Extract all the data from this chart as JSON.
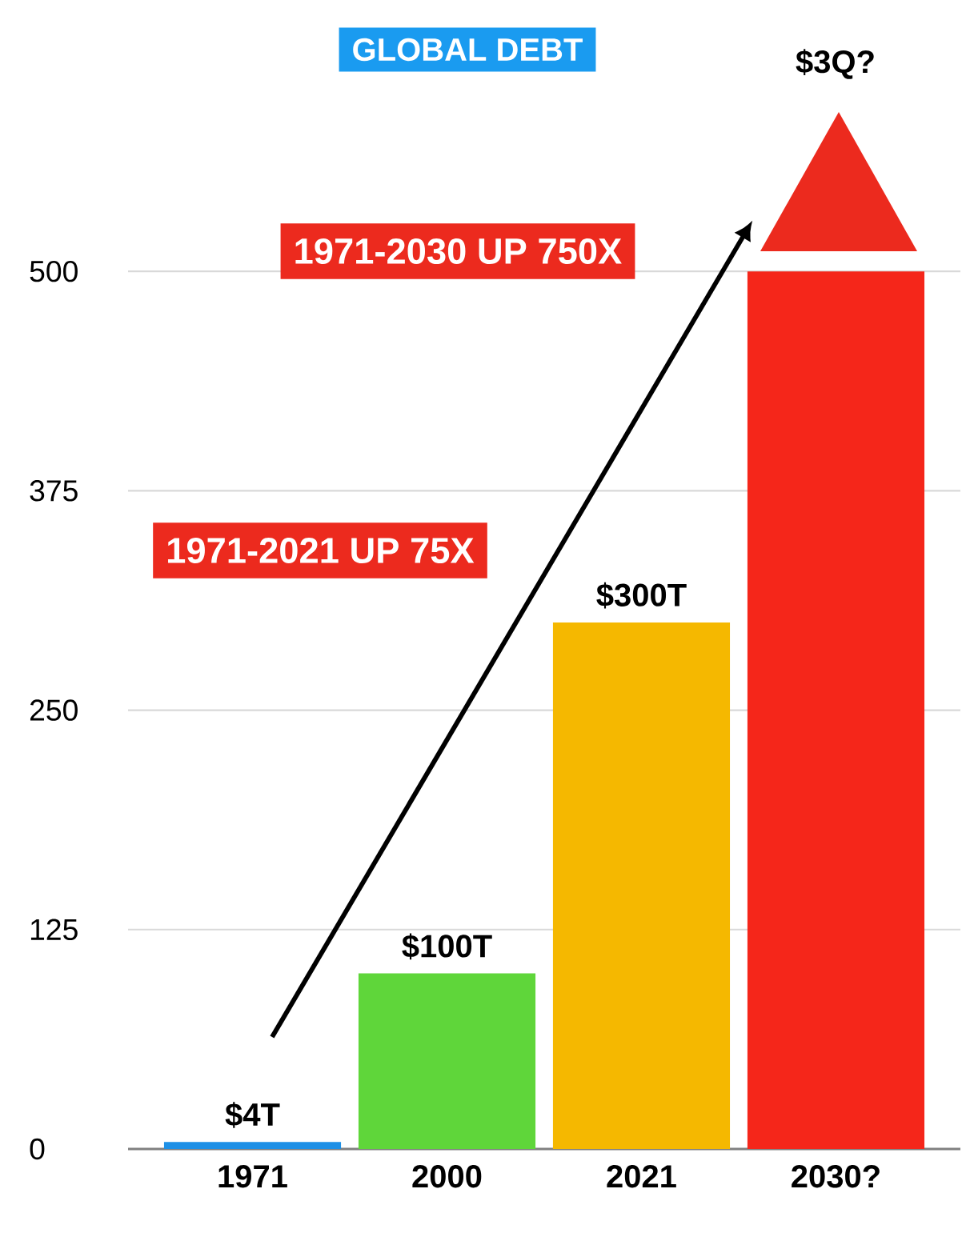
{
  "chart_data": {
    "type": "bar",
    "title": "GLOBAL DEBT",
    "categories": [
      "1971",
      "2000",
      "2021",
      "2030?"
    ],
    "values": [
      4,
      100,
      300,
      500
    ],
    "colors": [
      "#1e90e6",
      "#5fd63a",
      "#f5b800",
      "#f5261a"
    ],
    "value_labels": [
      "$4T",
      "$100T",
      "$300T",
      null
    ],
    "ylim": [
      0,
      640
    ],
    "yticks": [
      0,
      125,
      250,
      375,
      500
    ],
    "grid": "y",
    "annotations": [
      "1971-2030 UP 750X",
      "1971-2021 UP 75X",
      "$3Q?"
    ]
  }
}
